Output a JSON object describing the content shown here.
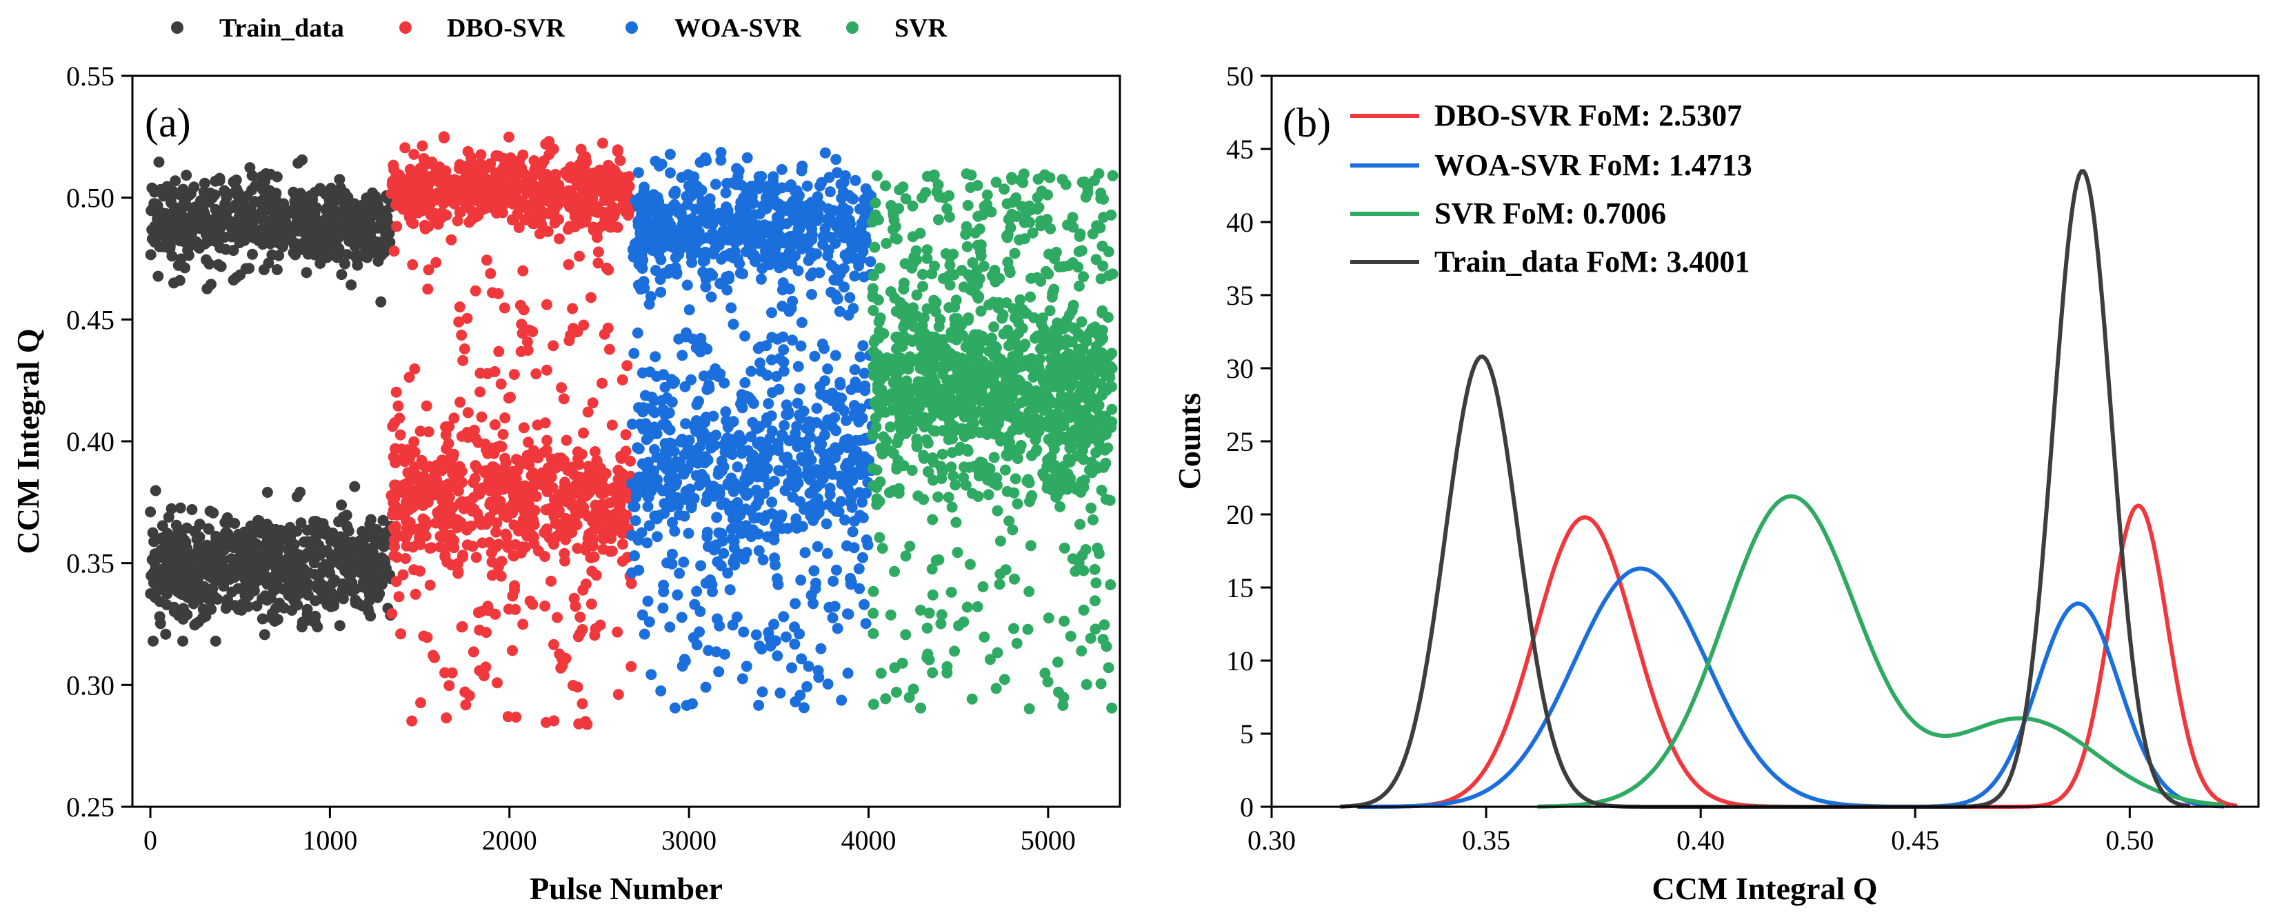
{
  "legend_top": [
    {
      "label": "Train_data",
      "color": "#3d3d3d"
    },
    {
      "label": "DBO-SVR",
      "color": "#f0383c"
    },
    {
      "label": "WOA-SVR",
      "color": "#1a6fdc"
    },
    {
      "label": "SVR",
      "color": "#2eaa62"
    }
  ],
  "chart_data": [
    {
      "type": "scatter",
      "panel_label": "(a)",
      "xlabel": "Pulse Number",
      "ylabel": "CCM Integral Q",
      "xlim": [
        -100,
        5400
      ],
      "ylim": [
        0.25,
        0.55
      ],
      "xticks": [
        0,
        1000,
        2000,
        3000,
        4000,
        5000
      ],
      "yticks": [
        0.25,
        0.3,
        0.35,
        0.4,
        0.45,
        0.5,
        0.55
      ],
      "ytick_labels": [
        "0.25",
        "0.30",
        "0.35",
        "0.40",
        "0.45",
        "0.50",
        "0.55"
      ],
      "grid": false,
      "series": [
        {
          "name": "Train_data",
          "color": "#3d3d3d",
          "x_range": [
            0,
            1340
          ],
          "clusters": [
            {
              "center": 0.489,
              "spread": 0.008
            },
            {
              "center": 0.349,
              "spread": 0.01
            }
          ],
          "outlier_range": [
            0.318,
            0.516
          ]
        },
        {
          "name": "DBO-SVR",
          "color": "#f0383c",
          "x_range": [
            1340,
            2680
          ],
          "clusters": [
            {
              "center": 0.503,
              "spread": 0.007
            },
            {
              "center": 0.375,
              "spread": 0.013
            }
          ],
          "outlier_range": [
            0.283,
            0.525
          ]
        },
        {
          "name": "WOA-SVR",
          "color": "#1a6fdc",
          "x_range": [
            2680,
            4020
          ],
          "clusters": [
            {
              "center": 0.488,
              "spread": 0.012
            },
            {
              "center": 0.388,
              "spread": 0.018
            }
          ],
          "outlier_range": [
            0.29,
            0.52
          ]
        },
        {
          "name": "SVR",
          "color": "#2eaa62",
          "x_range": [
            4020,
            5360
          ],
          "clusters": [
            {
              "center": 0.423,
              "spread": 0.025
            },
            {
              "center": 0.473,
              "spread": 0.02
            }
          ],
          "outlier_range": [
            0.29,
            0.52
          ]
        }
      ]
    },
    {
      "type": "line",
      "panel_label": "(b)",
      "xlabel": "CCM Integral Q",
      "ylabel": "Counts",
      "xlim": [
        0.3,
        0.53
      ],
      "ylim": [
        0,
        50
      ],
      "xticks": [
        0.3,
        0.35,
        0.4,
        0.45,
        0.5
      ],
      "xtick_labels": [
        "0.30",
        "0.35",
        "0.40",
        "0.45",
        "0.50"
      ],
      "yticks": [
        0,
        5,
        10,
        15,
        20,
        25,
        30,
        35,
        40,
        45,
        50
      ],
      "grid": false,
      "legend_position": "top-left",
      "series": [
        {
          "name": "DBO-SVR FoM: 2.5307",
          "color": "#f0383c",
          "x_range": [
            0.32,
            0.525
          ],
          "peaks": [
            {
              "mu": 0.373,
              "sigma": 0.0115,
              "amp": 19.8
            },
            {
              "mu": 0.502,
              "sigma": 0.0068,
              "amp": 20.6
            }
          ]
        },
        {
          "name": "WOA-SVR FoM: 1.4713",
          "color": "#1a6fdc",
          "x_range": [
            0.32,
            0.522
          ],
          "peaks": [
            {
              "mu": 0.386,
              "sigma": 0.0155,
              "amp": 16.3
            },
            {
              "mu": 0.488,
              "sigma": 0.0095,
              "amp": 13.9
            }
          ]
        },
        {
          "name": "SVR FoM: 0.7006",
          "color": "#2eaa62",
          "x_range": [
            0.362,
            0.522
          ],
          "peaks": [
            {
              "mu": 0.421,
              "sigma": 0.0155,
              "amp": 21.2
            },
            {
              "mu": 0.475,
              "sigma": 0.017,
              "amp": 6.0
            }
          ]
        },
        {
          "name": "Train_data FoM: 3.4001",
          "color": "#3d3d3d",
          "x_range": [
            0.316,
            0.514
          ],
          "peaks": [
            {
              "mu": 0.349,
              "sigma": 0.0085,
              "amp": 30.8
            },
            {
              "mu": 0.489,
              "sigma": 0.0068,
              "amp": 43.5
            }
          ]
        }
      ]
    }
  ]
}
